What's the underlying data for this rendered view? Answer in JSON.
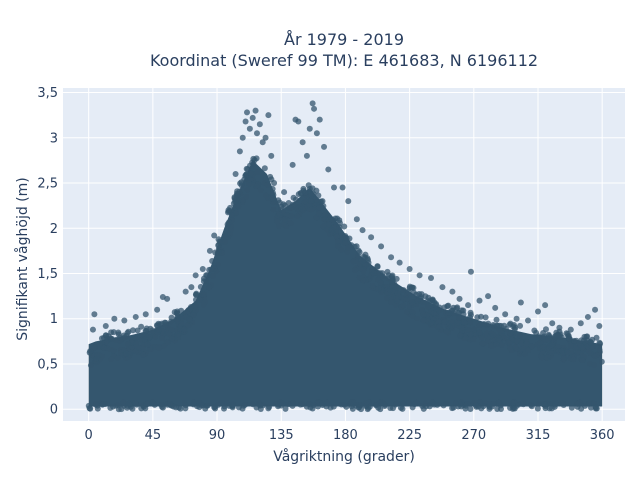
{
  "chart_data": {
    "type": "scatter",
    "title_line1": "År 1979 - 2019",
    "title_line2": "Koordinat (Sweref 99 TM): E 461683, N 6196112",
    "xlabel": "Vågriktning (grader)",
    "ylabel": "Signifikant våghöjd (m)",
    "xlim": [
      -18,
      376
    ],
    "ylim": [
      -0.13,
      3.55
    ],
    "x_ticks": [
      0,
      45,
      90,
      135,
      180,
      225,
      270,
      315,
      360
    ],
    "x_tick_labels": [
      "0",
      "45",
      "90",
      "135",
      "180",
      "225",
      "270",
      "315",
      "360"
    ],
    "y_ticks": [
      0,
      0.5,
      1,
      1.5,
      2,
      2.5,
      3,
      3.5
    ],
    "y_tick_labels": [
      "0",
      "0,5",
      "1",
      "1,5",
      "2",
      "2,5",
      "3",
      "3,5"
    ],
    "grid": true,
    "legend": "none",
    "plot_background": "#e5ecf6",
    "marker_color": "#34566e",
    "envelope": {
      "x": [
        0,
        5,
        15,
        30,
        45,
        60,
        75,
        85,
        95,
        105,
        115,
        125,
        135,
        145,
        155,
        165,
        175,
        190,
        210,
        230,
        250,
        270,
        290,
        310,
        330,
        345,
        360
      ],
      "top": [
        0.72,
        0.75,
        0.78,
        0.82,
        0.88,
        1.0,
        1.2,
        1.55,
        2.0,
        2.4,
        2.75,
        2.6,
        2.2,
        2.3,
        2.45,
        2.25,
        2.05,
        1.7,
        1.45,
        1.25,
        1.1,
        1.0,
        0.9,
        0.83,
        0.8,
        0.76,
        0.72
      ]
    },
    "points": [
      {
        "x": 3,
        "y": 0.88
      },
      {
        "x": 4,
        "y": 1.05
      },
      {
        "x": 12,
        "y": 0.92
      },
      {
        "x": 18,
        "y": 1.0
      },
      {
        "x": 25,
        "y": 0.98
      },
      {
        "x": 33,
        "y": 1.02
      },
      {
        "x": 40,
        "y": 1.05
      },
      {
        "x": 48,
        "y": 1.1
      },
      {
        "x": 52,
        "y": 1.24
      },
      {
        "x": 55,
        "y": 1.22
      },
      {
        "x": 62,
        "y": 1.08
      },
      {
        "x": 68,
        "y": 1.3
      },
      {
        "x": 72,
        "y": 1.35
      },
      {
        "x": 75,
        "y": 1.48
      },
      {
        "x": 80,
        "y": 1.55
      },
      {
        "x": 85,
        "y": 1.75
      },
      {
        "x": 88,
        "y": 1.92
      },
      {
        "x": 93,
        "y": 1.85
      },
      {
        "x": 98,
        "y": 2.2
      },
      {
        "x": 103,
        "y": 2.6
      },
      {
        "x": 106,
        "y": 2.85
      },
      {
        "x": 108,
        "y": 3.0
      },
      {
        "x": 110,
        "y": 3.18
      },
      {
        "x": 111,
        "y": 3.28
      },
      {
        "x": 113,
        "y": 3.1
      },
      {
        "x": 115,
        "y": 3.22
      },
      {
        "x": 117,
        "y": 3.3
      },
      {
        "x": 118,
        "y": 3.05
      },
      {
        "x": 120,
        "y": 3.15
      },
      {
        "x": 122,
        "y": 2.95
      },
      {
        "x": 124,
        "y": 3.0
      },
      {
        "x": 126,
        "y": 3.25
      },
      {
        "x": 128,
        "y": 2.8
      },
      {
        "x": 130,
        "y": 2.5
      },
      {
        "x": 137,
        "y": 2.4
      },
      {
        "x": 143,
        "y": 2.7
      },
      {
        "x": 145,
        "y": 3.2
      },
      {
        "x": 147,
        "y": 3.18
      },
      {
        "x": 150,
        "y": 2.95
      },
      {
        "x": 153,
        "y": 2.8
      },
      {
        "x": 155,
        "y": 3.1
      },
      {
        "x": 157,
        "y": 3.38
      },
      {
        "x": 158,
        "y": 3.32
      },
      {
        "x": 160,
        "y": 3.05
      },
      {
        "x": 162,
        "y": 3.2
      },
      {
        "x": 165,
        "y": 2.9
      },
      {
        "x": 168,
        "y": 2.65
      },
      {
        "x": 172,
        "y": 2.45
      },
      {
        "x": 178,
        "y": 2.45
      },
      {
        "x": 182,
        "y": 2.3
      },
      {
        "x": 188,
        "y": 2.1
      },
      {
        "x": 192,
        "y": 1.98
      },
      {
        "x": 198,
        "y": 1.9
      },
      {
        "x": 205,
        "y": 1.8
      },
      {
        "x": 212,
        "y": 1.68
      },
      {
        "x": 218,
        "y": 1.62
      },
      {
        "x": 225,
        "y": 1.55
      },
      {
        "x": 232,
        "y": 1.48
      },
      {
        "x": 240,
        "y": 1.45
      },
      {
        "x": 248,
        "y": 1.35
      },
      {
        "x": 255,
        "y": 1.3
      },
      {
        "x": 260,
        "y": 1.22
      },
      {
        "x": 266,
        "y": 1.15
      },
      {
        "x": 268,
        "y": 1.52
      },
      {
        "x": 274,
        "y": 1.2
      },
      {
        "x": 280,
        "y": 1.25
      },
      {
        "x": 285,
        "y": 1.12
      },
      {
        "x": 292,
        "y": 1.05
      },
      {
        "x": 300,
        "y": 1.0
      },
      {
        "x": 303,
        "y": 1.18
      },
      {
        "x": 308,
        "y": 0.98
      },
      {
        "x": 315,
        "y": 1.08
      },
      {
        "x": 320,
        "y": 1.15
      },
      {
        "x": 325,
        "y": 0.95
      },
      {
        "x": 330,
        "y": 0.9
      },
      {
        "x": 338,
        "y": 0.88
      },
      {
        "x": 345,
        "y": 0.95
      },
      {
        "x": 350,
        "y": 1.02
      },
      {
        "x": 355,
        "y": 1.1
      },
      {
        "x": 358,
        "y": 0.92
      }
    ]
  }
}
